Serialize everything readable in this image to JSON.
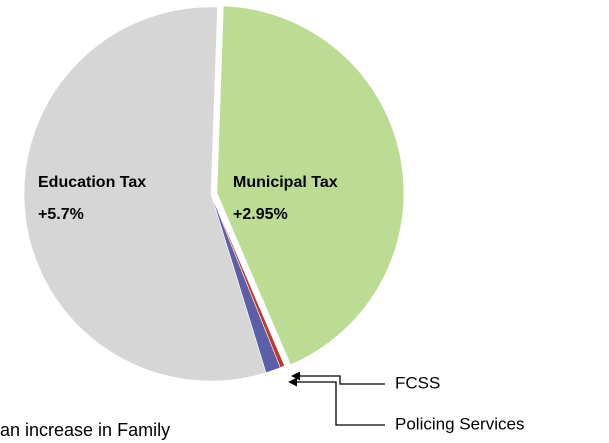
{
  "chart_data": {
    "type": "pie",
    "categories": [
      "Municipal Tax",
      "FCSS",
      "Policing Services",
      "Education Tax"
    ],
    "values": [
      43,
      0.4,
      1.3,
      55.3
    ],
    "colors": [
      "#bcdc94",
      "#c0392b",
      "#5c5fa8",
      "#d6d6d6"
    ],
    "changes": [
      "+2.95%",
      null,
      null,
      "+5.7%"
    ],
    "caption": "an increase in Family"
  }
}
